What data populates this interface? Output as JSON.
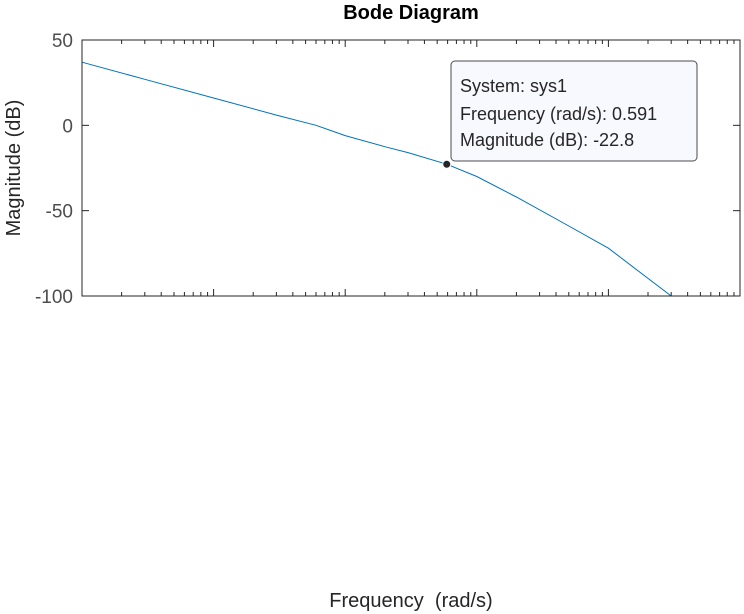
{
  "chart_data": {
    "type": "line",
    "title": "Bode Diagram",
    "xlabel": "Frequency  (rad/s)",
    "ylabel": "Magnitude (dB)",
    "x_scale": "log",
    "xlim": [
      0.001,
      100
    ],
    "ylim": [
      -100,
      50
    ],
    "yticks": [
      50,
      0,
      -50,
      -100
    ],
    "ytick_labels": [
      "50",
      "0",
      "-50",
      "-100"
    ],
    "grid": false,
    "series": [
      {
        "x": [
          0.001,
          0.003,
          0.01,
          0.03,
          0.06,
          0.1,
          0.2,
          0.3,
          0.591,
          1,
          2,
          5,
          10,
          30
        ],
        "y": [
          37,
          27,
          16,
          6,
          0,
          -6,
          -12.5,
          -16,
          -22.8,
          -30,
          -42,
          -59,
          -72,
          -100
        ],
        "color": "#0072bd"
      }
    ],
    "datatip": {
      "lines": [
        "System: sys1",
        "Frequency (rad/s): 0.591",
        "Magnitude (dB): -22.8"
      ],
      "x": 0.591,
      "y": -22.8
    }
  }
}
